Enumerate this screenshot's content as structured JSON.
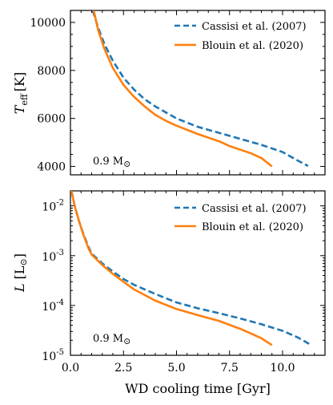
{
  "chart_data": [
    {
      "type": "line",
      "ylabel_symbol": "T",
      "ylabel_sub": "eff",
      "ylabel_unit": "[K]",
      "note": "0.9 M",
      "note_symbol": "⊙",
      "ylim": [
        3650,
        10500
      ],
      "xlim": [
        0,
        12
      ],
      "yticks": [
        4000,
        6000,
        8000,
        10000
      ],
      "ytick_labels": [
        "4000",
        "6000",
        "8000",
        "10000"
      ],
      "legend_position": "top-right",
      "series": [
        {
          "name": "Cassisi et al. (2007)",
          "color": "#1f77b4",
          "dash": "dashed",
          "points": [
            [
              1.05,
              10500
            ],
            [
              1.3,
              9800
            ],
            [
              1.6,
              9100
            ],
            [
              2.0,
              8400
            ],
            [
              2.5,
              7700
            ],
            [
              3.0,
              7200
            ],
            [
              3.5,
              6800
            ],
            [
              4.0,
              6500
            ],
            [
              4.5,
              6250
            ],
            [
              5.0,
              6000
            ],
            [
              6.0,
              5650
            ],
            [
              7.0,
              5400
            ],
            [
              8.0,
              5150
            ],
            [
              9.0,
              4900
            ],
            [
              10.0,
              4600
            ],
            [
              10.6,
              4300
            ],
            [
              11.2,
              4020
            ]
          ]
        },
        {
          "name": "Blouin et al. (2020)",
          "color": "#ff7f0e",
          "dash": "solid",
          "points": [
            [
              1.1,
              10500
            ],
            [
              1.3,
              9700
            ],
            [
              1.6,
              8900
            ],
            [
              2.0,
              8100
            ],
            [
              2.5,
              7400
            ],
            [
              3.0,
              6900
            ],
            [
              3.5,
              6500
            ],
            [
              4.0,
              6150
            ],
            [
              4.5,
              5900
            ],
            [
              5.0,
              5700
            ],
            [
              6.0,
              5350
            ],
            [
              7.0,
              5050
            ],
            [
              7.5,
              4850
            ],
            [
              8.5,
              4550
            ],
            [
              9.0,
              4350
            ],
            [
              9.5,
              4000
            ]
          ]
        }
      ]
    },
    {
      "type": "line",
      "ylabel_symbol": "L",
      "ylabel_unit": "[L",
      "ylabel_unit_symbol": "⊙",
      "ylabel_unit_close": "]",
      "xlabel": "WD cooling time [Gyr]",
      "note": "0.9 M",
      "note_symbol": "⊙",
      "yscale": "log",
      "ylim": [
        1e-05,
        0.02
      ],
      "xlim": [
        0,
        12
      ],
      "xticks": [
        0,
        2.5,
        5,
        7.5,
        10
      ],
      "xtick_labels": [
        "0.0",
        "2.5",
        "5.0",
        "7.5",
        "10.0"
      ],
      "yticks": [
        1e-05,
        0.0001,
        0.001,
        0.01
      ],
      "ytick_exponents": [
        "-5",
        "-4",
        "-3",
        "-2"
      ],
      "ytick_base": "10",
      "legend_position": "top-right",
      "series": [
        {
          "name": "Cassisi et al. (2007)",
          "color": "#1f77b4",
          "dash": "dashed",
          "points": [
            [
              0.05,
              0.02
            ],
            [
              0.2,
              0.01
            ],
            [
              0.4,
              0.005
            ],
            [
              0.6,
              0.0028
            ],
            [
              0.85,
              0.0015
            ],
            [
              1.0,
              0.0011
            ],
            [
              1.5,
              0.0007
            ],
            [
              2.0,
              0.00048
            ],
            [
              2.5,
              0.00034
            ],
            [
              3.0,
              0.00026
            ],
            [
              4.0,
              0.00017
            ],
            [
              5.0,
              0.000115
            ],
            [
              6.0,
              8.8e-05
            ],
            [
              7.0,
              7e-05
            ],
            [
              8.0,
              5.5e-05
            ],
            [
              9.0,
              4.2e-05
            ],
            [
              10.0,
              3.1e-05
            ],
            [
              10.7,
              2.3e-05
            ],
            [
              11.3,
              1.65e-05
            ]
          ]
        },
        {
          "name": "Blouin et al. (2020)",
          "color": "#ff7f0e",
          "dash": "solid",
          "points": [
            [
              0.05,
              0.02
            ],
            [
              0.2,
              0.01
            ],
            [
              0.4,
              0.005
            ],
            [
              0.6,
              0.0027
            ],
            [
              0.85,
              0.0014
            ],
            [
              1.0,
              0.00105
            ],
            [
              1.5,
              0.00065
            ],
            [
              2.0,
              0.00043
            ],
            [
              2.5,
              0.0003
            ],
            [
              3.0,
              0.00021
            ],
            [
              4.0,
              0.000125
            ],
            [
              5.0,
              8.5e-05
            ],
            [
              6.0,
              6.4e-05
            ],
            [
              7.0,
              4.9e-05
            ],
            [
              8.0,
              3.4e-05
            ],
            [
              9.0,
              2.2e-05
            ],
            [
              9.5,
              1.6e-05
            ]
          ]
        }
      ]
    }
  ]
}
